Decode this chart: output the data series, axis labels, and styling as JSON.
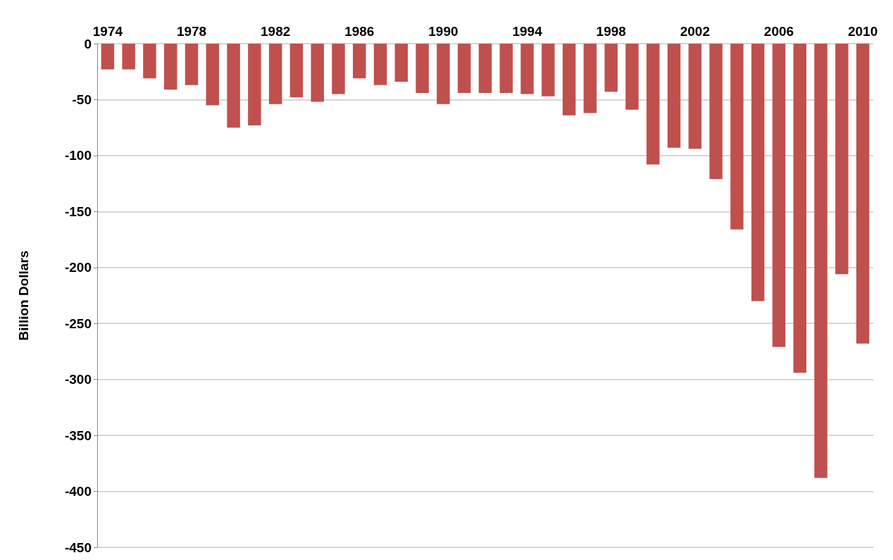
{
  "chart_data": {
    "type": "bar",
    "ylabel": "Billion Dollars",
    "categories": [
      "1974",
      null,
      null,
      null,
      "1978",
      null,
      null,
      null,
      "1982",
      null,
      null,
      null,
      "1986",
      null,
      null,
      null,
      "1990",
      null,
      null,
      null,
      "1994",
      null,
      null,
      null,
      "1998",
      null,
      null,
      null,
      "2002",
      null,
      null,
      null,
      "2006",
      null,
      null,
      null,
      "2010"
    ],
    "values": [
      -23,
      -23,
      -31,
      -41,
      -37,
      -55,
      -75,
      -73,
      -54,
      -48,
      -52,
      -45,
      -31,
      -37,
      -34,
      -44,
      -54,
      -44,
      -44,
      -44,
      -45,
      -47,
      -64,
      -62,
      -43,
      -59,
      -108,
      -93,
      -94,
      -121,
      -166,
      -230,
      -271,
      -294,
      -388,
      -206,
      -268
    ],
    "color": "#c0504d",
    "ylim": [
      -450,
      0
    ],
    "yticks": [
      -450,
      -400,
      -350,
      -300,
      -250,
      -200,
      -150,
      -100,
      -50,
      0
    ],
    "grid": "y"
  }
}
